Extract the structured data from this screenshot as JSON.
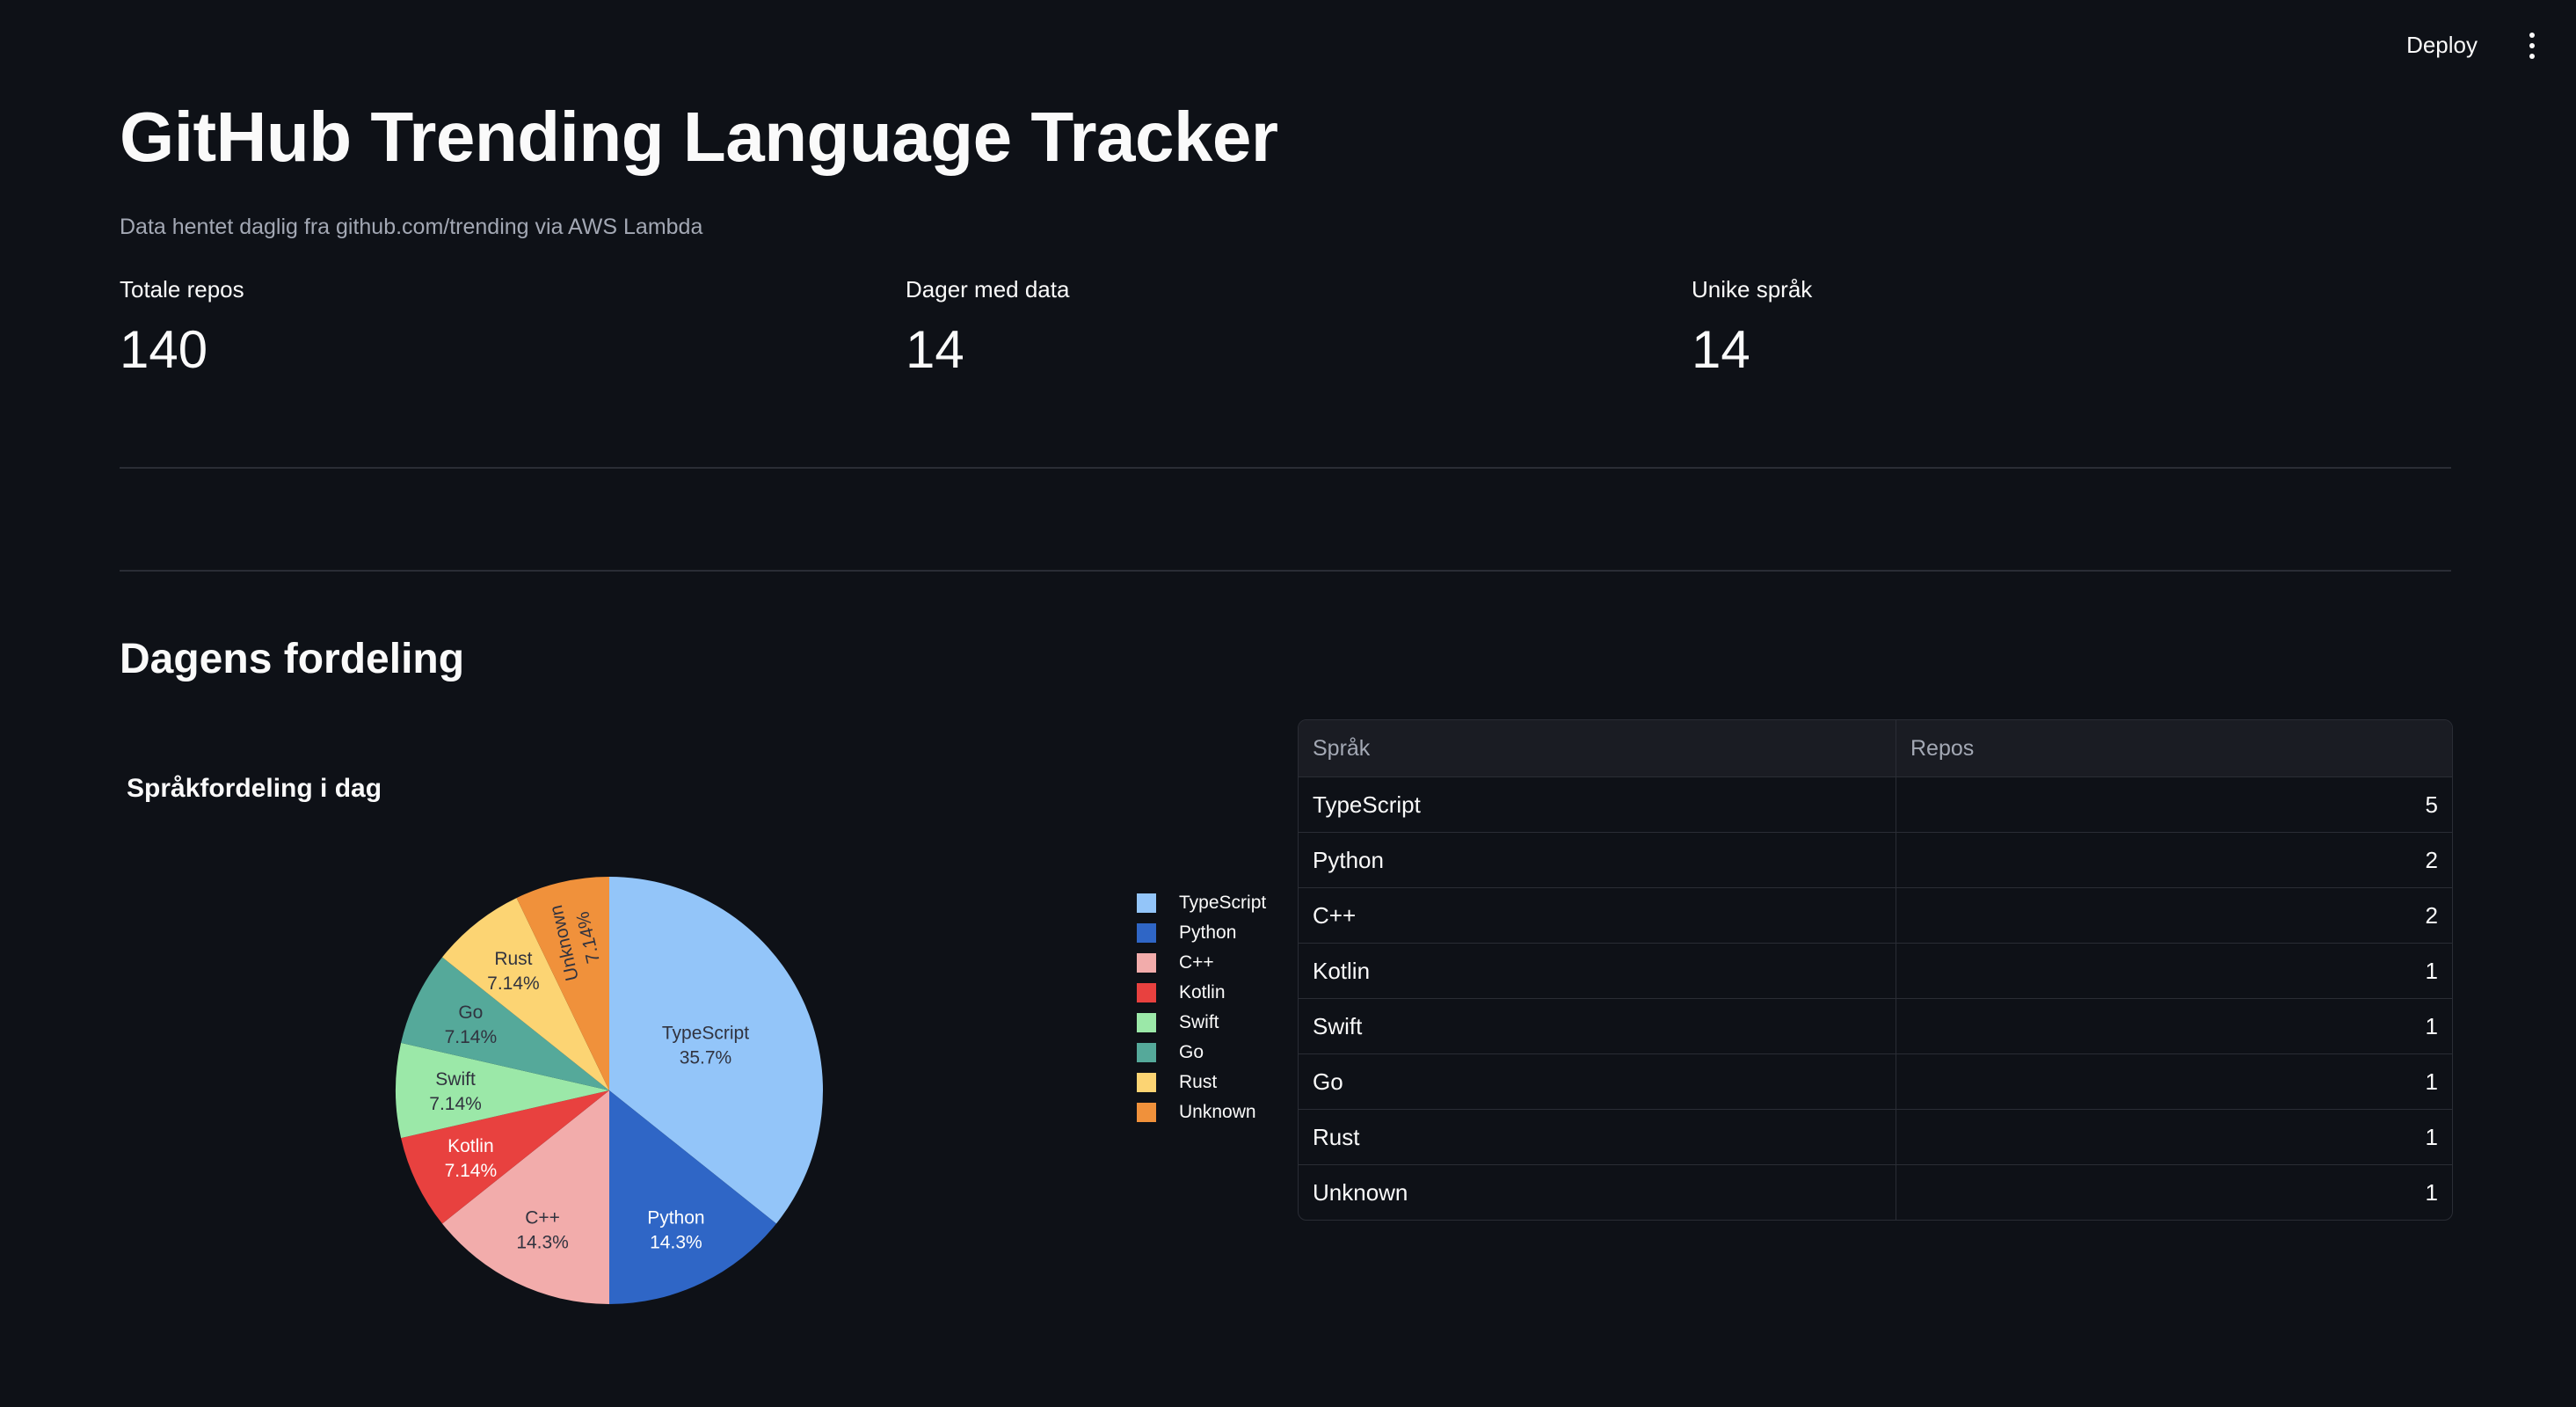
{
  "toolbar": {
    "deploy_label": "Deploy"
  },
  "header": {
    "title": "GitHub Trending Language Tracker",
    "subtitle": "Data hentet daglig fra github.com/trending via AWS Lambda"
  },
  "metrics": [
    {
      "label": "Totale repos",
      "value": "140"
    },
    {
      "label": "Dager med data",
      "value": "14"
    },
    {
      "label": "Unike språk",
      "value": "14"
    }
  ],
  "section": {
    "title": "Dagens fordeling"
  },
  "colors": {
    "background": "#0e1117",
    "slices": [
      "#93c5f9",
      "#2f66c6",
      "#f2acab",
      "#e8413f",
      "#9be8a8",
      "#55a99a",
      "#fcd473",
      "#f0913b"
    ]
  },
  "chart_data": {
    "type": "pie",
    "title": "Språkfordeling i dag",
    "categories": [
      "TypeScript",
      "Python",
      "C++",
      "Kotlin",
      "Swift",
      "Go",
      "Rust",
      "Unknown"
    ],
    "values": [
      5,
      2,
      2,
      1,
      1,
      1,
      1,
      1
    ],
    "percent_labels": [
      "35.7%",
      "14.3%",
      "14.3%",
      "7.14%",
      "7.14%",
      "7.14%",
      "7.14%",
      "7.14%"
    ],
    "legend_position": "right"
  },
  "table": {
    "headers": [
      "Språk",
      "Repos"
    ],
    "rows": [
      {
        "lang": "TypeScript",
        "count": "5"
      },
      {
        "lang": "Python",
        "count": "2"
      },
      {
        "lang": "C++",
        "count": "2"
      },
      {
        "lang": "Kotlin",
        "count": "1"
      },
      {
        "lang": "Swift",
        "count": "1"
      },
      {
        "lang": "Go",
        "count": "1"
      },
      {
        "lang": "Rust",
        "count": "1"
      },
      {
        "lang": "Unknown",
        "count": "1"
      }
    ]
  }
}
